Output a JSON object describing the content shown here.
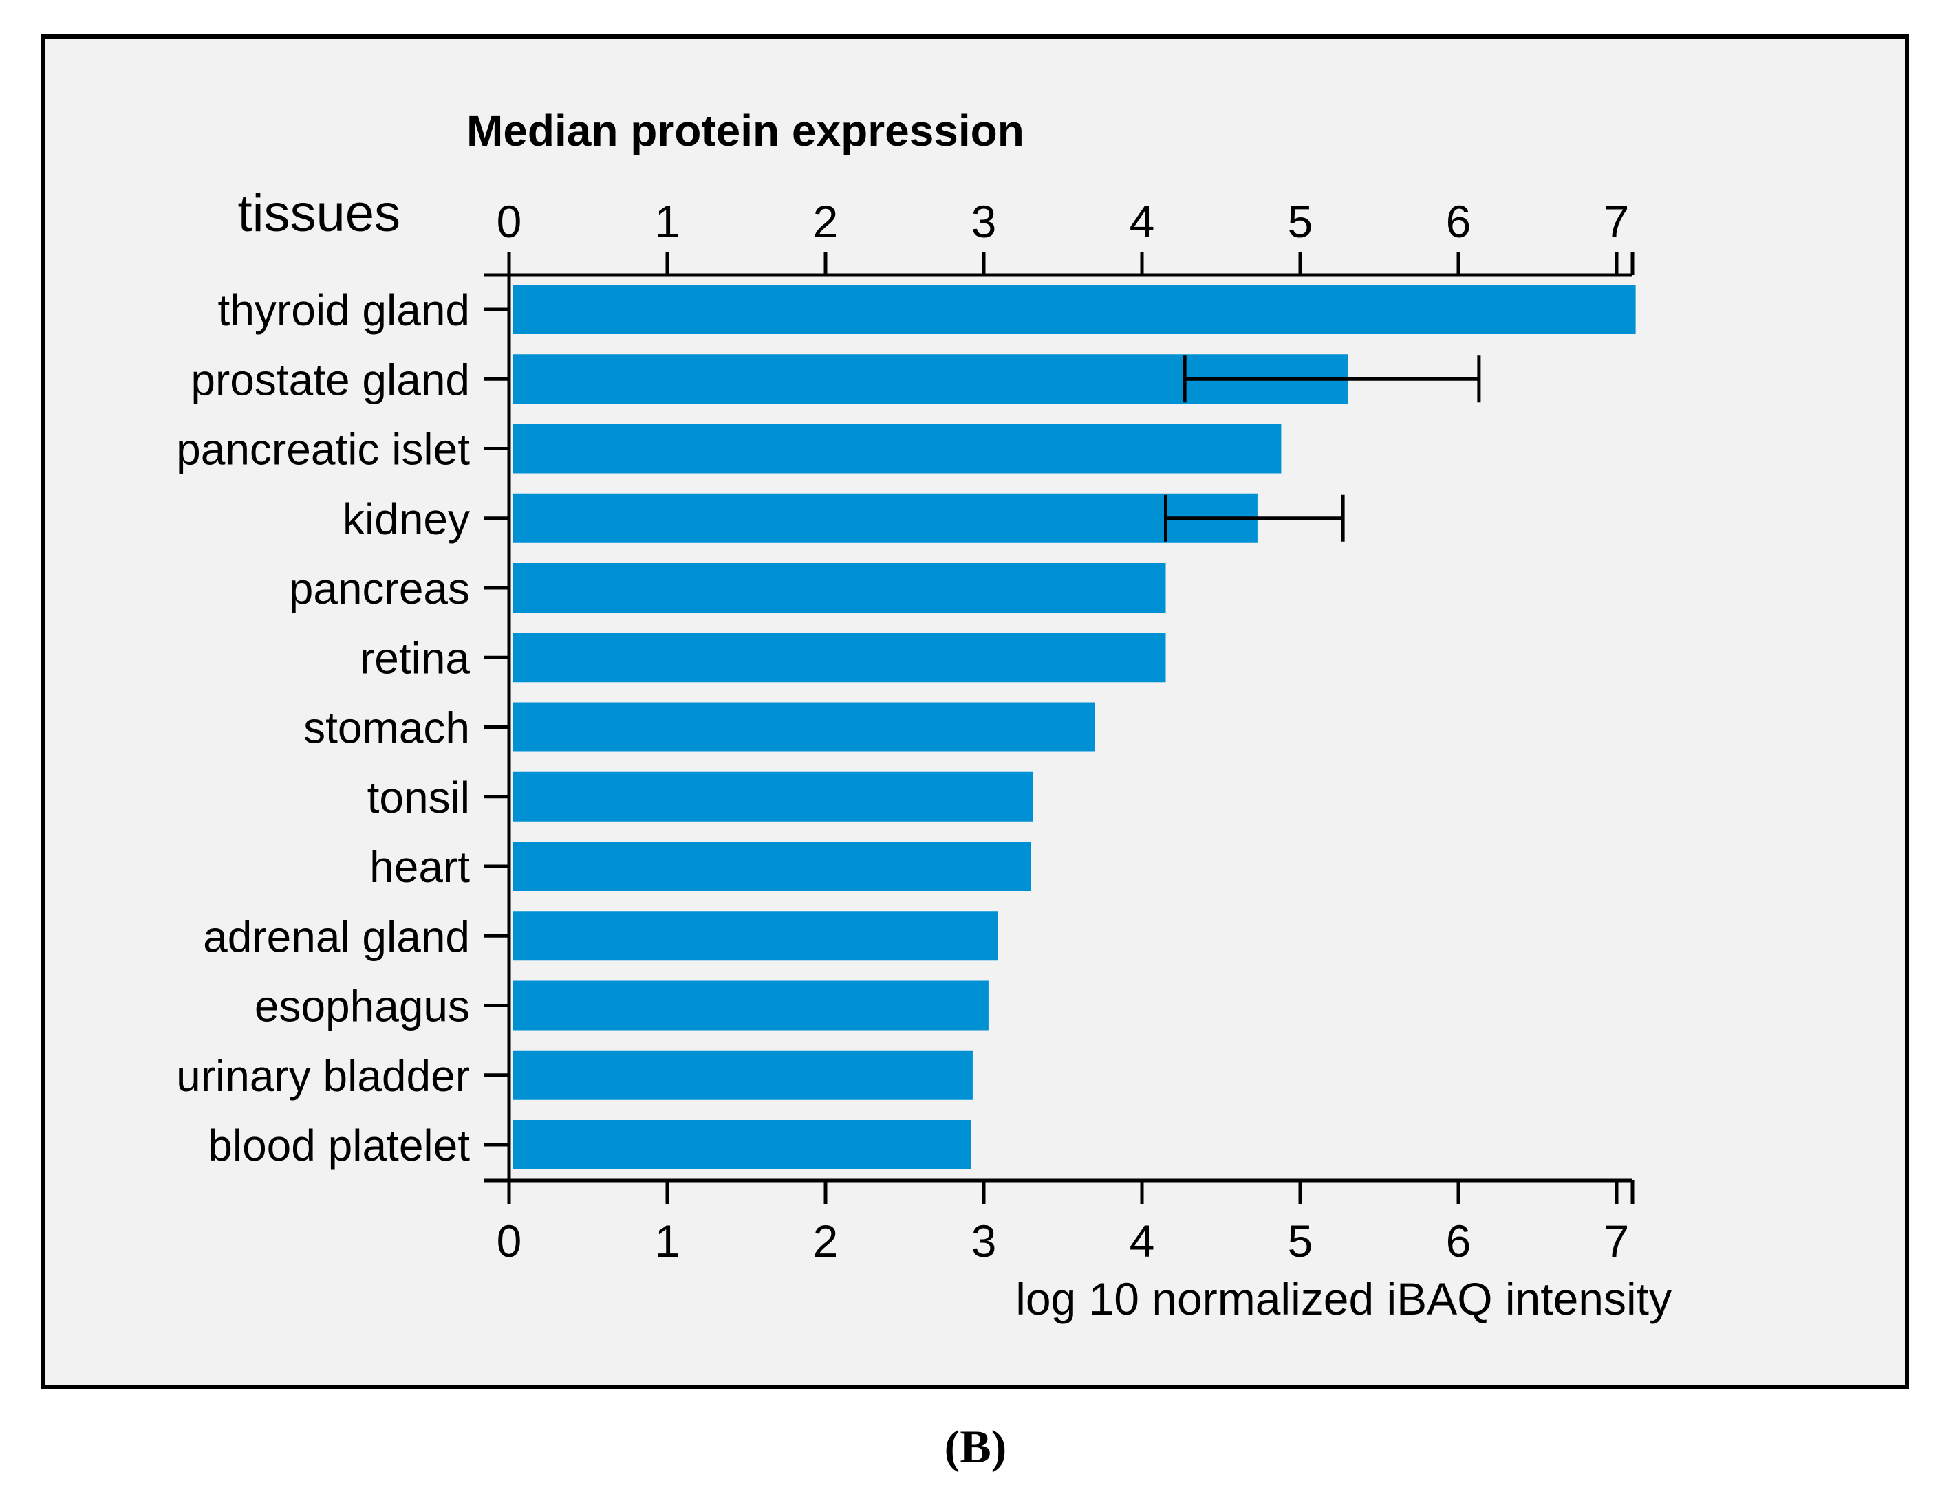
{
  "panel_label": "(B)",
  "chart_data": {
    "type": "bar",
    "orientation": "horizontal",
    "title": "Median protein expression",
    "category_axis_label": "tissues",
    "xlabel": "log 10 normalized iBAQ intensity",
    "xlim": [
      0,
      7.1
    ],
    "xticks": [
      "0",
      "1",
      "2",
      "3",
      "4",
      "5",
      "6",
      "7"
    ],
    "grid": false,
    "legend": "none",
    "colors": {
      "bar": "#0091d5",
      "panel_bg": "#f2f2f2",
      "frame": "#000000",
      "error_bar": "#000000"
    },
    "categories": [
      "thyroid gland",
      "prostate gland",
      "pancreatic islet",
      "kidney",
      "pancreas",
      "retina",
      "stomach",
      "tonsil",
      "heart",
      "adrenal gland",
      "esophagus",
      "urinary bladder",
      "blood platelet"
    ],
    "values": [
      7.12,
      5.3,
      4.88,
      4.73,
      4.15,
      4.15,
      3.7,
      3.31,
      3.3,
      3.09,
      3.03,
      2.93,
      2.92
    ],
    "error_bars": [
      null,
      [
        4.27,
        6.13
      ],
      null,
      [
        4.15,
        5.27
      ],
      null,
      null,
      null,
      null,
      null,
      null,
      null,
      null,
      null
    ]
  }
}
